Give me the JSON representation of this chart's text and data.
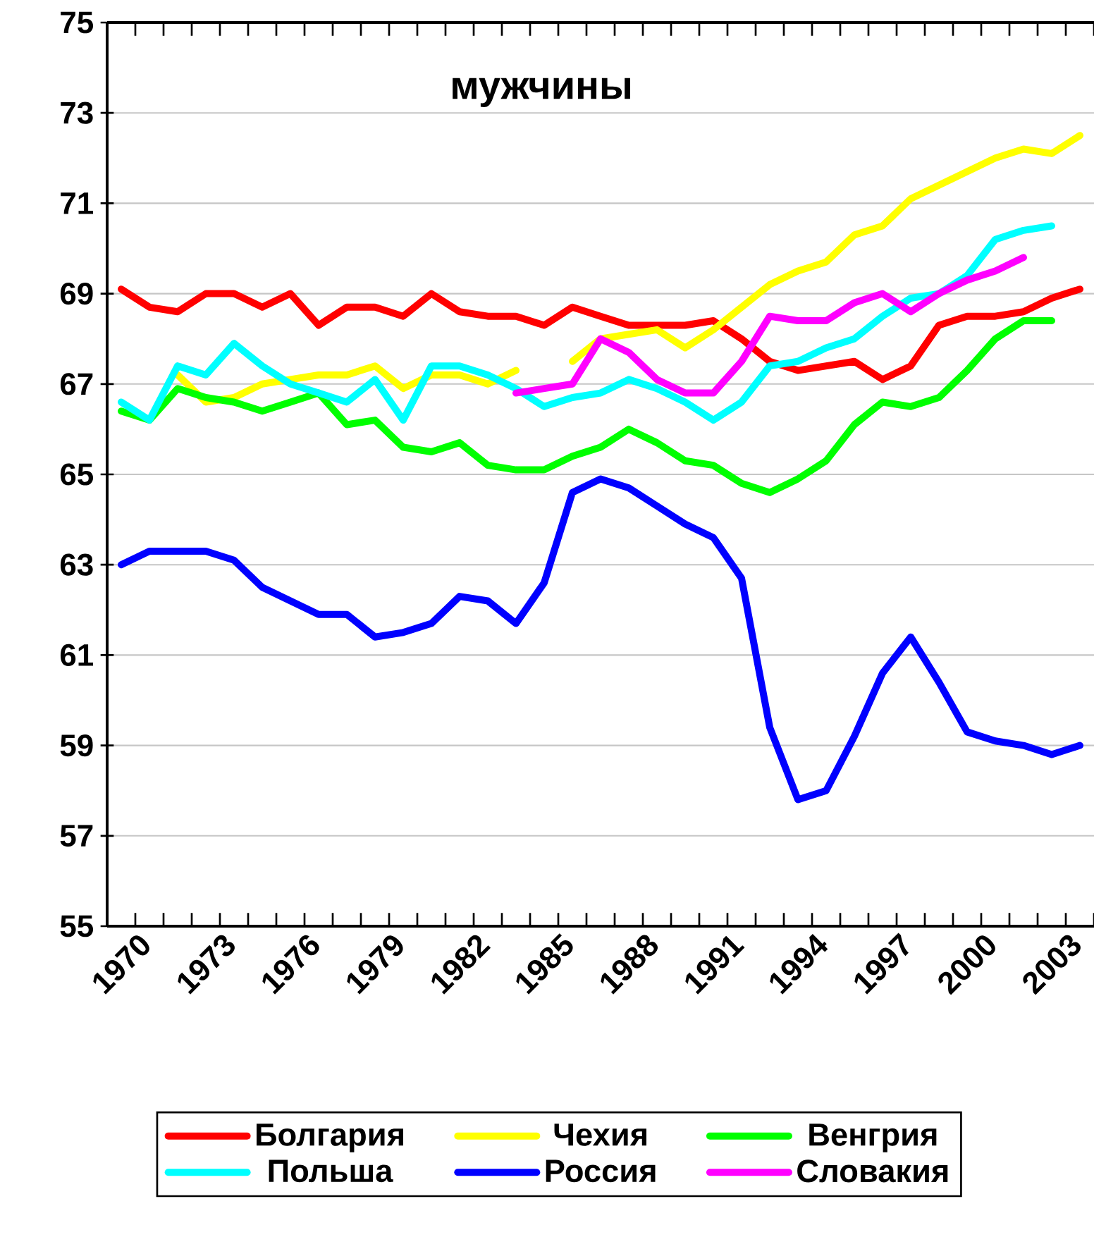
{
  "chart_data": {
    "type": "line",
    "title": "мужчины",
    "categories": [
      "1970",
      null,
      null,
      "1973",
      null,
      null,
      "1976",
      null,
      null,
      "1979",
      null,
      null,
      "1982",
      null,
      null,
      "1985",
      null,
      null,
      "1988",
      null,
      null,
      "1991",
      null,
      null,
      "1994",
      null,
      null,
      "1997",
      null,
      null,
      "2000",
      null,
      null,
      "2003",
      null
    ],
    "ylim": [
      55,
      75
    ],
    "yticks": [
      55,
      57,
      59,
      61,
      63,
      65,
      67,
      69,
      71,
      73,
      75
    ],
    "grid": "y",
    "legend": "bottom",
    "line_style": "solid",
    "series": [
      {
        "name": "Болгария",
        "color": "#ff0000",
        "values": [
          69.1,
          68.7,
          68.6,
          69.0,
          69.0,
          68.7,
          69.0,
          68.3,
          68.7,
          68.7,
          68.5,
          69.0,
          68.6,
          68.5,
          68.5,
          68.3,
          68.7,
          68.5,
          68.3,
          68.3,
          68.3,
          68.4,
          68.0,
          67.5,
          67.3,
          67.4,
          67.5,
          67.1,
          67.4,
          68.3,
          68.5,
          68.5,
          68.6,
          68.9,
          69.1
        ]
      },
      {
        "name": "Чехия",
        "color": "#ffff00",
        "values": [
          null,
          null,
          67.2,
          66.6,
          66.7,
          67.0,
          67.1,
          67.2,
          67.2,
          67.4,
          66.9,
          67.2,
          67.2,
          67.0,
          67.3,
          null,
          67.5,
          68.0,
          68.1,
          68.2,
          67.8,
          68.2,
          68.7,
          69.2,
          69.5,
          69.7,
          70.3,
          70.5,
          71.1,
          71.4,
          71.7,
          72.0,
          72.2,
          72.1,
          72.5
        ]
      },
      {
        "name": "Венгрия",
        "color": "#00ff00",
        "values": [
          66.4,
          66.2,
          66.9,
          66.7,
          66.6,
          66.4,
          66.6,
          66.8,
          66.1,
          66.2,
          65.6,
          65.5,
          65.7,
          65.2,
          65.1,
          65.1,
          65.4,
          65.6,
          66.0,
          65.7,
          65.3,
          65.2,
          64.8,
          64.6,
          64.9,
          65.3,
          66.1,
          66.6,
          66.5,
          66.7,
          67.3,
          68.0,
          68.4,
          68.4,
          null
        ]
      },
      {
        "name": "Польша",
        "color": "#00ffff",
        "values": [
          66.6,
          66.2,
          67.4,
          67.2,
          67.9,
          67.4,
          67.0,
          66.8,
          66.6,
          67.1,
          66.2,
          67.4,
          67.4,
          67.2,
          66.9,
          66.5,
          66.7,
          66.8,
          67.1,
          66.9,
          66.6,
          66.2,
          66.6,
          67.4,
          67.5,
          67.8,
          68.0,
          68.5,
          68.9,
          69.0,
          69.4,
          70.2,
          70.4,
          70.5,
          null
        ]
      },
      {
        "name": "Россия",
        "color": "#0000ff",
        "values": [
          63.0,
          63.3,
          63.3,
          63.3,
          63.1,
          62.5,
          62.2,
          61.9,
          61.9,
          61.4,
          61.5,
          61.7,
          62.3,
          62.2,
          61.7,
          62.6,
          64.6,
          64.9,
          64.7,
          64.3,
          63.9,
          63.6,
          62.7,
          59.4,
          57.8,
          58.0,
          59.2,
          60.6,
          61.4,
          60.4,
          59.3,
          59.1,
          59.0,
          58.8,
          59.0
        ]
      },
      {
        "name": "Словакия",
        "color": "#ff00ff",
        "values": [
          null,
          null,
          null,
          null,
          null,
          null,
          null,
          null,
          null,
          null,
          null,
          null,
          null,
          null,
          66.8,
          66.9,
          67.0,
          68.0,
          67.7,
          67.1,
          66.8,
          66.8,
          67.5,
          68.5,
          68.4,
          68.4,
          68.8,
          69.0,
          68.6,
          69.0,
          69.3,
          69.5,
          69.8,
          null,
          null
        ]
      }
    ]
  }
}
